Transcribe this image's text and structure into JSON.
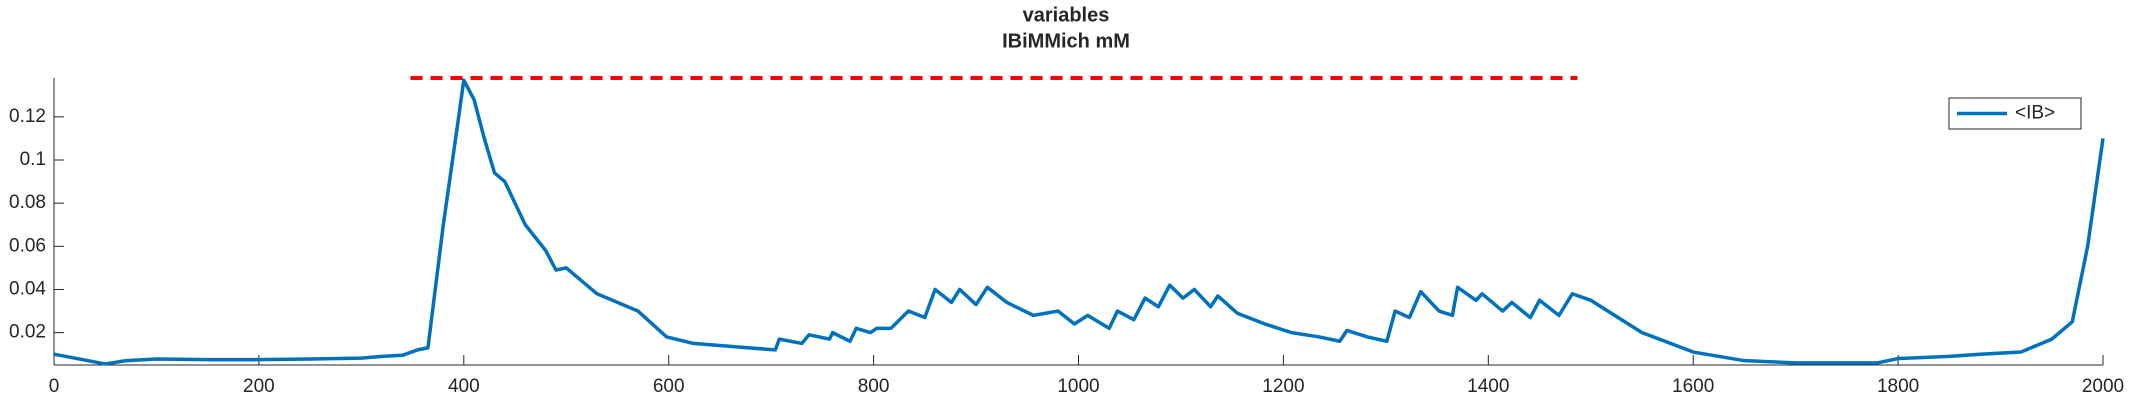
{
  "chart_data": {
    "type": "line",
    "title": "variables",
    "subtitle": "IBiMMich mM",
    "x": [
      0,
      50,
      70,
      100,
      150,
      200,
      250,
      300,
      320,
      340,
      355,
      365,
      380,
      395,
      400,
      410,
      420,
      430,
      440,
      460,
      480,
      490,
      500,
      510,
      530,
      550,
      570,
      598,
      624,
      677,
      704,
      708,
      730,
      737,
      757,
      760,
      777,
      783,
      797,
      803,
      817,
      834,
      850,
      860,
      876,
      884,
      900,
      911,
      930,
      956,
      980,
      996,
      1009,
      1030,
      1038,
      1054,
      1065,
      1078,
      1089,
      1102,
      1113,
      1129,
      1136,
      1155,
      1182,
      1208,
      1235,
      1255,
      1262,
      1282,
      1301,
      1309,
      1323,
      1334,
      1352,
      1365,
      1370,
      1388,
      1394,
      1414,
      1423,
      1441,
      1450,
      1469,
      1482,
      1500,
      1550,
      1600,
      1650,
      1700,
      1780,
      1800,
      1850,
      1880,
      1920,
      1950,
      1970,
      1985,
      2000
    ],
    "series": [
      {
        "name": "<IB>",
        "color": "#0072bd",
        "values": [
          0.01,
          0.0055,
          0.007,
          0.0078,
          0.0075,
          0.0075,
          0.0078,
          0.0082,
          0.009,
          0.0095,
          0.012,
          0.013,
          0.07,
          0.12,
          0.137,
          0.128,
          0.11,
          0.094,
          0.09,
          0.07,
          0.058,
          0.049,
          0.05,
          0.046,
          0.038,
          0.034,
          0.03,
          0.018,
          0.015,
          0.013,
          0.012,
          0.017,
          0.015,
          0.019,
          0.017,
          0.02,
          0.016,
          0.022,
          0.02,
          0.022,
          0.022,
          0.03,
          0.027,
          0.04,
          0.034,
          0.04,
          0.033,
          0.041,
          0.034,
          0.028,
          0.03,
          0.024,
          0.028,
          0.022,
          0.03,
          0.026,
          0.036,
          0.032,
          0.042,
          0.036,
          0.04,
          0.032,
          0.037,
          0.029,
          0.024,
          0.02,
          0.018,
          0.016,
          0.021,
          0.018,
          0.016,
          0.03,
          0.027,
          0.039,
          0.03,
          0.028,
          0.041,
          0.035,
          0.038,
          0.03,
          0.034,
          0.027,
          0.035,
          0.028,
          0.038,
          0.035,
          0.02,
          0.011,
          0.007,
          0.006,
          0.006,
          0.008,
          0.009,
          0.01,
          0.011,
          0.017,
          0.025,
          0.06,
          0.11
        ]
      }
    ],
    "hline": {
      "value": 0.138,
      "xmin": 348,
      "xmax": 1487,
      "color": "#ff0000"
    },
    "xlim": [
      0,
      2000
    ],
    "xticks": [
      0,
      200,
      400,
      600,
      800,
      1000,
      1200,
      1400,
      1600,
      1800,
      2000
    ],
    "ylim": [
      0.005,
      0.138
    ],
    "yticks": [
      0.02,
      0.04,
      0.06,
      0.08,
      0.1,
      0.12
    ],
    "grid": false,
    "legend": "northeast"
  }
}
